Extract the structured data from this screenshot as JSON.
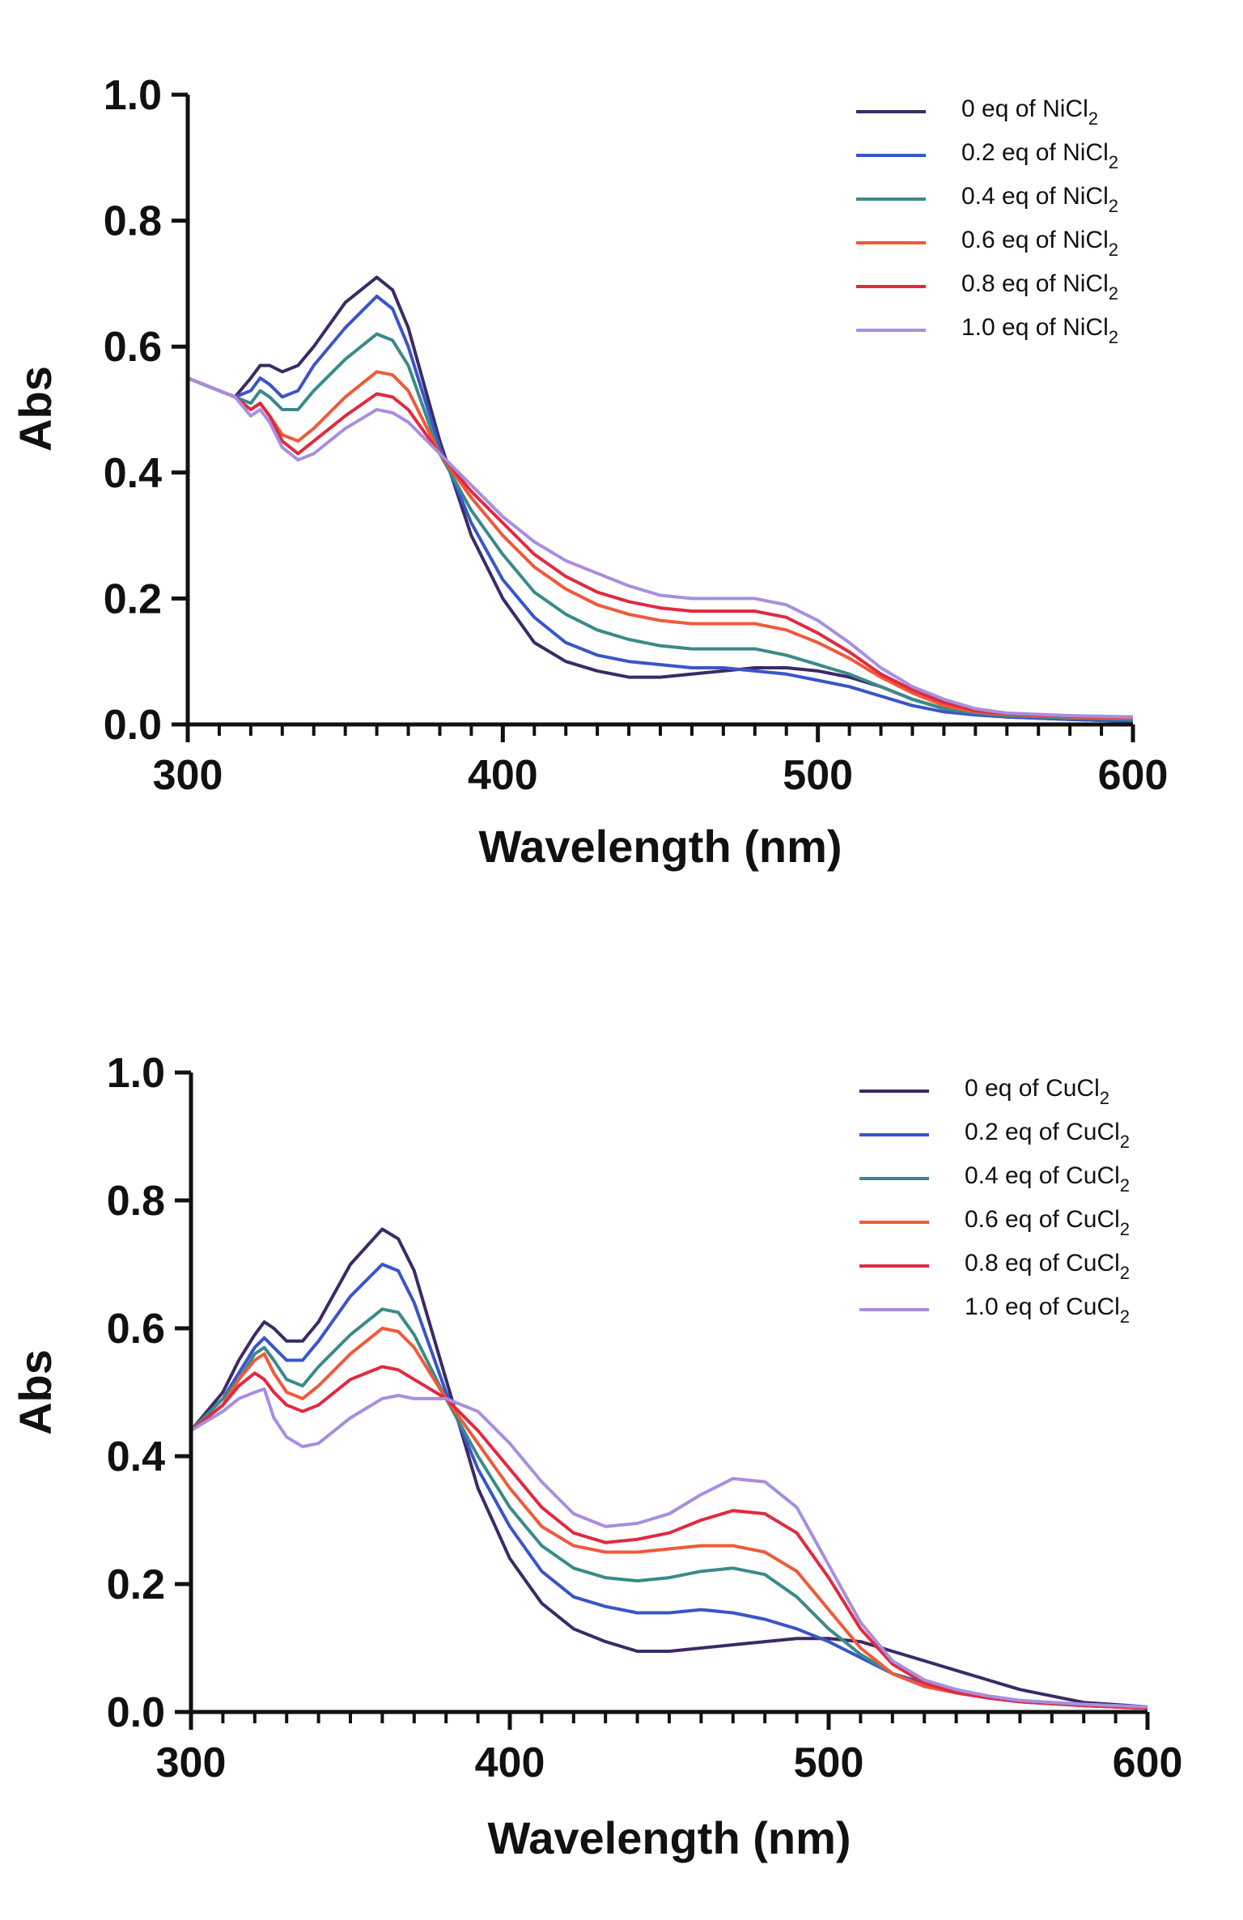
{
  "chart_data": [
    {
      "type": "line",
      "xlabel": "Wavelength (nm)",
      "ylabel": "Abs",
      "xlim": [
        300,
        600
      ],
      "ylim": [
        0,
        1.0
      ],
      "xticks": [
        "300",
        "400",
        "500",
        "600"
      ],
      "yticks": [
        "0.0",
        "0.2",
        "0.4",
        "0.6",
        "0.8",
        "1.0"
      ],
      "legend_position": "top-right",
      "x": [
        300,
        310,
        315,
        320,
        323,
        326,
        330,
        335,
        340,
        350,
        360,
        365,
        370,
        380,
        390,
        400,
        410,
        420,
        430,
        440,
        450,
        460,
        470,
        480,
        490,
        500,
        510,
        520,
        530,
        540,
        550,
        560,
        580,
        600
      ],
      "series": [
        {
          "name": "0 eq of NiCl",
          "sub": "2",
          "color": "#3b2a66",
          "values": [
            0.55,
            0.53,
            0.52,
            0.55,
            0.57,
            0.57,
            0.56,
            0.57,
            0.6,
            0.67,
            0.71,
            0.69,
            0.63,
            0.45,
            0.3,
            0.2,
            0.13,
            0.1,
            0.085,
            0.075,
            0.075,
            0.08,
            0.085,
            0.09,
            0.09,
            0.085,
            0.075,
            0.06,
            0.04,
            0.025,
            0.018,
            0.012,
            0.008,
            0.005
          ]
        },
        {
          "name": "0.2 eq of NiCl",
          "sub": "2",
          "color": "#3a55c8",
          "values": [
            0.55,
            0.53,
            0.52,
            0.53,
            0.55,
            0.54,
            0.52,
            0.53,
            0.57,
            0.63,
            0.68,
            0.66,
            0.6,
            0.44,
            0.32,
            0.23,
            0.17,
            0.13,
            0.11,
            0.1,
            0.095,
            0.09,
            0.09,
            0.085,
            0.08,
            0.07,
            0.06,
            0.045,
            0.03,
            0.02,
            0.015,
            0.012,
            0.008,
            0.005
          ]
        },
        {
          "name": "0.4 eq of NiCl",
          "sub": "2",
          "color": "#3a8a8a",
          "values": [
            0.55,
            0.53,
            0.52,
            0.51,
            0.53,
            0.52,
            0.5,
            0.5,
            0.53,
            0.58,
            0.62,
            0.61,
            0.57,
            0.43,
            0.34,
            0.27,
            0.21,
            0.175,
            0.15,
            0.135,
            0.125,
            0.12,
            0.12,
            0.12,
            0.11,
            0.095,
            0.08,
            0.06,
            0.04,
            0.025,
            0.018,
            0.014,
            0.01,
            0.008
          ]
        },
        {
          "name": "0.6 eq of NiCl",
          "sub": "2",
          "color": "#ef5a3a",
          "values": [
            0.55,
            0.53,
            0.52,
            0.5,
            0.51,
            0.49,
            0.46,
            0.45,
            0.47,
            0.52,
            0.56,
            0.555,
            0.53,
            0.43,
            0.36,
            0.3,
            0.25,
            0.215,
            0.19,
            0.175,
            0.165,
            0.16,
            0.16,
            0.16,
            0.15,
            0.13,
            0.105,
            0.075,
            0.05,
            0.03,
            0.02,
            0.016,
            0.012,
            0.01
          ]
        },
        {
          "name": "0.8 eq of NiCl",
          "sub": "2",
          "color": "#e02a40",
          "values": [
            0.55,
            0.53,
            0.52,
            0.5,
            0.51,
            0.49,
            0.45,
            0.43,
            0.45,
            0.49,
            0.525,
            0.52,
            0.5,
            0.43,
            0.37,
            0.32,
            0.27,
            0.235,
            0.21,
            0.195,
            0.185,
            0.18,
            0.18,
            0.18,
            0.17,
            0.145,
            0.115,
            0.08,
            0.055,
            0.035,
            0.022,
            0.017,
            0.013,
            0.012
          ]
        },
        {
          "name": "1.0 eq of NiCl",
          "sub": "2",
          "color": "#a88ee0",
          "values": [
            0.55,
            0.53,
            0.52,
            0.49,
            0.5,
            0.48,
            0.44,
            0.42,
            0.43,
            0.47,
            0.5,
            0.495,
            0.48,
            0.43,
            0.38,
            0.33,
            0.29,
            0.26,
            0.24,
            0.22,
            0.205,
            0.2,
            0.2,
            0.2,
            0.19,
            0.165,
            0.13,
            0.09,
            0.06,
            0.04,
            0.025,
            0.018,
            0.014,
            0.012
          ]
        }
      ]
    },
    {
      "type": "line",
      "xlabel": "Wavelength (nm)",
      "ylabel": "Abs",
      "xlim": [
        300,
        600
      ],
      "ylim": [
        0,
        1.0
      ],
      "xticks": [
        "300",
        "400",
        "500",
        "600"
      ],
      "yticks": [
        "0.0",
        "0.2",
        "0.4",
        "0.6",
        "0.8",
        "1.0"
      ],
      "legend_position": "top-right",
      "x": [
        300,
        310,
        315,
        320,
        323,
        326,
        330,
        335,
        340,
        350,
        360,
        365,
        370,
        380,
        390,
        400,
        410,
        420,
        430,
        440,
        450,
        460,
        470,
        480,
        490,
        500,
        510,
        520,
        530,
        540,
        550,
        560,
        580,
        600
      ],
      "series": [
        {
          "name": "0 eq of CuCl",
          "sub": "2",
          "color": "#3b2a66",
          "values": [
            0.44,
            0.5,
            0.55,
            0.59,
            0.61,
            0.6,
            0.58,
            0.58,
            0.61,
            0.7,
            0.755,
            0.74,
            0.69,
            0.52,
            0.35,
            0.24,
            0.17,
            0.13,
            0.11,
            0.095,
            0.095,
            0.1,
            0.105,
            0.11,
            0.115,
            0.115,
            0.11,
            0.095,
            0.08,
            0.065,
            0.05,
            0.035,
            0.015,
            0.008
          ]
        },
        {
          "name": "0.2 eq of CuCl",
          "sub": "2",
          "color": "#3a55c8",
          "values": [
            0.44,
            0.49,
            0.53,
            0.57,
            0.585,
            0.57,
            0.55,
            0.55,
            0.58,
            0.65,
            0.7,
            0.69,
            0.64,
            0.5,
            0.38,
            0.29,
            0.22,
            0.18,
            0.165,
            0.155,
            0.155,
            0.16,
            0.155,
            0.145,
            0.13,
            0.11,
            0.085,
            0.06,
            0.045,
            0.035,
            0.025,
            0.018,
            0.01,
            0.006
          ]
        },
        {
          "name": "0.4 eq of CuCl",
          "sub": "2",
          "color": "#3a8a8a",
          "values": [
            0.44,
            0.49,
            0.52,
            0.56,
            0.57,
            0.55,
            0.52,
            0.51,
            0.54,
            0.59,
            0.63,
            0.625,
            0.59,
            0.49,
            0.4,
            0.32,
            0.26,
            0.225,
            0.21,
            0.205,
            0.21,
            0.22,
            0.225,
            0.215,
            0.18,
            0.13,
            0.09,
            0.06,
            0.04,
            0.03,
            0.022,
            0.016,
            0.01,
            0.006
          ]
        },
        {
          "name": "0.6 eq of CuCl",
          "sub": "2",
          "color": "#ef5a3a",
          "values": [
            0.44,
            0.48,
            0.52,
            0.55,
            0.56,
            0.53,
            0.5,
            0.49,
            0.51,
            0.56,
            0.6,
            0.595,
            0.57,
            0.49,
            0.42,
            0.35,
            0.29,
            0.26,
            0.25,
            0.25,
            0.255,
            0.26,
            0.26,
            0.25,
            0.22,
            0.16,
            0.1,
            0.06,
            0.04,
            0.03,
            0.022,
            0.016,
            0.01,
            0.006
          ]
        },
        {
          "name": "0.8 eq of CuCl",
          "sub": "2",
          "color": "#e02a40",
          "values": [
            0.44,
            0.48,
            0.51,
            0.53,
            0.52,
            0.5,
            0.48,
            0.47,
            0.48,
            0.52,
            0.54,
            0.535,
            0.52,
            0.49,
            0.44,
            0.38,
            0.32,
            0.28,
            0.265,
            0.27,
            0.28,
            0.3,
            0.315,
            0.31,
            0.28,
            0.21,
            0.13,
            0.075,
            0.045,
            0.03,
            0.022,
            0.016,
            0.01,
            0.006
          ]
        },
        {
          "name": "1.0 eq of CuCl",
          "sub": "2",
          "color": "#a88ee0",
          "values": [
            0.44,
            0.47,
            0.49,
            0.5,
            0.505,
            0.46,
            0.43,
            0.415,
            0.42,
            0.46,
            0.49,
            0.495,
            0.49,
            0.49,
            0.47,
            0.42,
            0.36,
            0.31,
            0.29,
            0.295,
            0.31,
            0.34,
            0.365,
            0.36,
            0.32,
            0.23,
            0.14,
            0.08,
            0.05,
            0.035,
            0.025,
            0.018,
            0.012,
            0.008
          ]
        }
      ]
    }
  ]
}
